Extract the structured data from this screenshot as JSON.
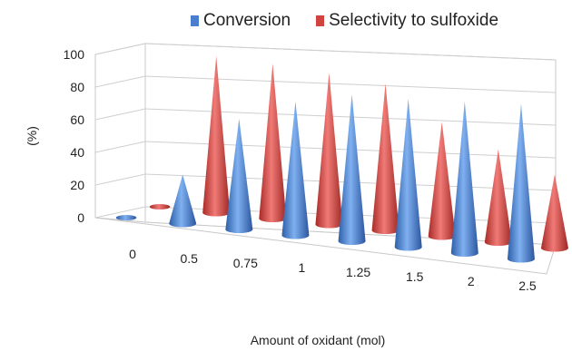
{
  "chart_data": {
    "type": "bar",
    "categories": [
      "0",
      "0.5",
      "0.75",
      "1",
      "1.25",
      "1.5",
      "2",
      "2.5"
    ],
    "series": [
      {
        "name": "Conversion",
        "color": "#4a7fd0",
        "values": [
          0,
          30,
          68,
          82,
          90,
          91,
          93,
          95
        ]
      },
      {
        "name": "Selectivity to sulfoxide",
        "color": "#d0433f",
        "values": [
          0,
          96,
          95,
          93,
          90,
          70,
          57,
          45
        ]
      }
    ],
    "ylabel": "(%)",
    "xlabel": "Amount of oxidant (mol)",
    "ylim": [
      0,
      100
    ],
    "yticks": [
      "0",
      "20",
      "40",
      "60",
      "80",
      "100"
    ],
    "grid": true,
    "legend_position": "top"
  }
}
